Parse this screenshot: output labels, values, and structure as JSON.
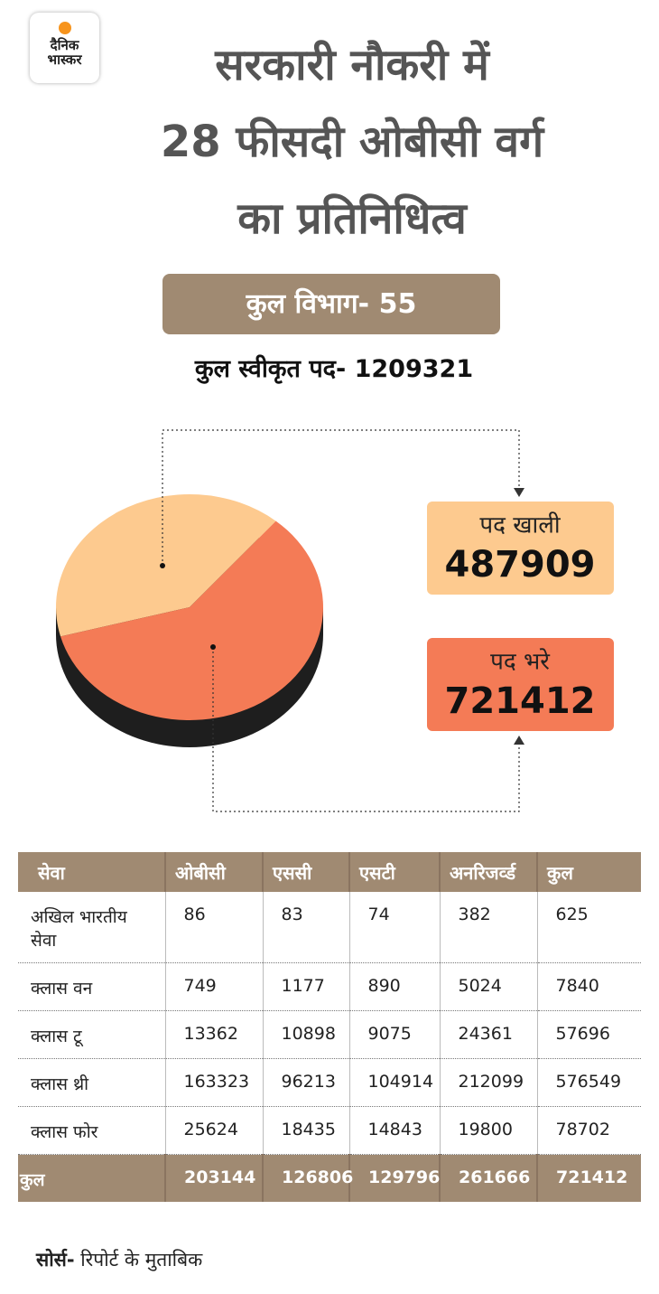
{
  "header": {
    "logo": [
      "दैनिक",
      "भास्कर"
    ],
    "title_lines": [
      "सरकारी नौकरी में",
      "28 फीसदी ओबीसी वर्ग",
      "का प्रतिनिधित्व"
    ],
    "departments": "कुल विभाग- 55",
    "sanctioned": "कुल स्वीकृत पद- 1209321"
  },
  "chart_data": {
    "type": "pie",
    "categories": [
      "पद खाली",
      "पद भरे"
    ],
    "values": [
      487909,
      721412
    ],
    "colors": [
      "#fdca8f",
      "#f47b56"
    ]
  },
  "table": {
    "columns": [
      "सेवा",
      "ओबीसी",
      "एससी",
      "एसटी",
      "अनरिजर्व्ड",
      "कुल"
    ],
    "rows": [
      [
        "अखिल भारतीय सेवा",
        86,
        83,
        74,
        382,
        625
      ],
      [
        "क्लास वन",
        749,
        1177,
        890,
        5024,
        7840
      ],
      [
        "क्लास टू",
        13362,
        10898,
        9075,
        24361,
        57696
      ],
      [
        "क्लास थ्री",
        163323,
        96213,
        104914,
        212099,
        576549
      ],
      [
        "क्लास फोर",
        25624,
        18435,
        14843,
        19800,
        78702
      ]
    ],
    "total": [
      "कुल",
      203144,
      126806,
      129796,
      261666,
      721412
    ]
  },
  "source": {
    "label": "सोर्स-",
    "text": "रिपोर्ट के मुताबिक"
  }
}
